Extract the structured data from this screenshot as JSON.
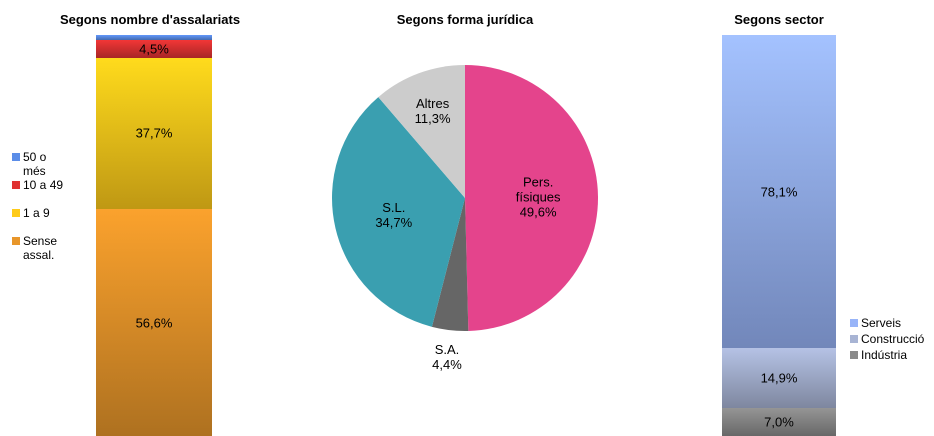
{
  "chart_data": [
    {
      "type": "bar",
      "title": "Segons nombre d'assalariats",
      "ylim": [
        0,
        100
      ],
      "series": [
        {
          "name": "Sense assal.",
          "color": "#e8962a",
          "values": [
            56.6
          ],
          "value_labels": [
            "56,6%"
          ]
        },
        {
          "name": "1 a 9",
          "color": "#fecb1a",
          "values": [
            37.7
          ],
          "value_labels": [
            "37,7%"
          ]
        },
        {
          "name": "10 a 49",
          "color": "#e03232",
          "values": [
            4.5
          ],
          "value_labels": [
            "4,5%"
          ]
        },
        {
          "name": "50 o més",
          "color": "#5b8de8",
          "values": [
            1.2
          ],
          "value_labels": [
            null
          ]
        }
      ]
    },
    {
      "type": "pie",
      "title": "Segons forma jurídica",
      "categories": [
        "Pers. físiques",
        "S.A.",
        "S.L.",
        "Altres"
      ],
      "values": [
        49.6,
        4.4,
        34.7,
        11.3
      ],
      "value_labels": [
        "49,6%",
        "4,4%",
        "34,7%",
        "11,3%"
      ],
      "colors": [
        "#e4448c",
        "#666666",
        "#3a9fb0",
        "#cccccc"
      ]
    },
    {
      "type": "bar",
      "title": "Segons sector",
      "ylim": [
        0,
        100
      ],
      "series": [
        {
          "name": "Indústria",
          "color": "#8a8a8a",
          "values": [
            7.0
          ],
          "value_labels": [
            "7,0%"
          ]
        },
        {
          "name": "Construcció",
          "color": "#a8b4d4",
          "values": [
            14.9
          ],
          "value_labels": [
            "14,9%"
          ]
        },
        {
          "name": "Serveis",
          "color": "#98b4f8",
          "values": [
            78.1
          ],
          "value_labels": [
            "78,1%"
          ]
        }
      ]
    }
  ]
}
